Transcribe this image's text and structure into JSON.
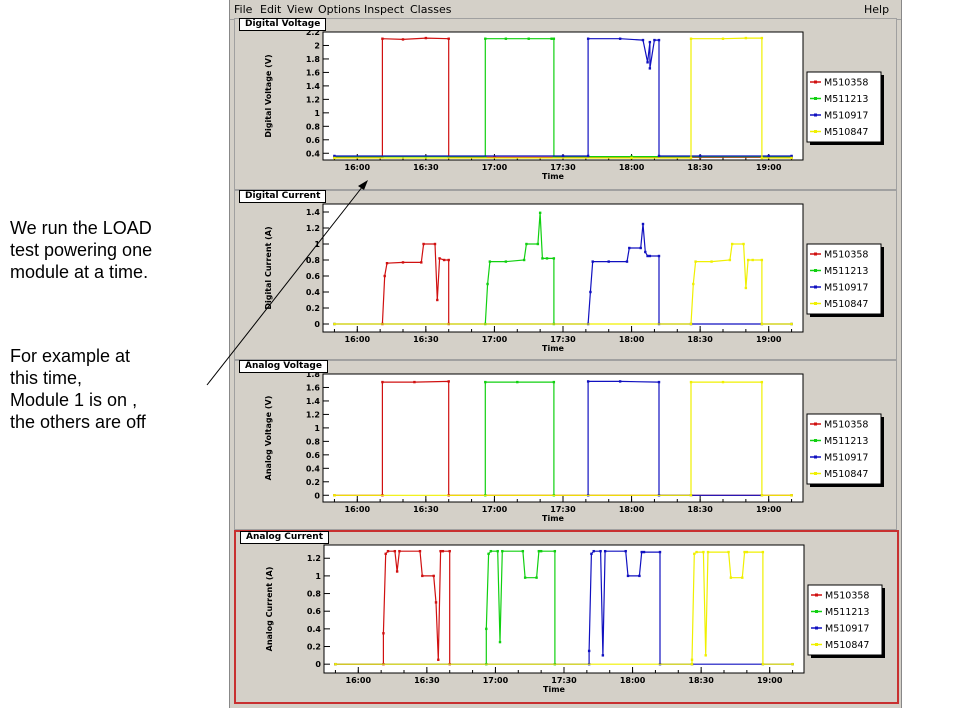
{
  "annotation": {
    "para1": "We run the LOAD\ntest powering one\nmodule at a time.",
    "para2": "For example at\nthis time,\nModule 1 is on ,\nthe others are off"
  },
  "menu": {
    "items": [
      "File",
      "Edit",
      "View",
      "Options",
      "Inspect",
      "Classes"
    ],
    "help": "Help"
  },
  "colors": {
    "M510358": "#d01010",
    "M511213": "#10d010",
    "M510917": "#1010c0",
    "M510847": "#f0f000",
    "window": "#d4d0c8",
    "selection": "#c83030"
  },
  "legend": [
    "M510358",
    "M511213",
    "M510917",
    "M510847"
  ],
  "chart_data": [
    {
      "type": "line",
      "title": "Digital Voltage",
      "xlabel": "Time",
      "ylabel": "Digital Voltage (V)",
      "xticks": [
        "16:00",
        "16:30",
        "17:00",
        "17:30",
        "18:00",
        "18:30",
        "19:00"
      ],
      "xlim": [
        "15:45",
        "19:15"
      ],
      "ylim": [
        0.3,
        2.2
      ],
      "yticks": [
        0.4,
        0.6,
        0.8,
        1,
        1.2,
        1.4,
        1.6,
        1.8,
        2,
        2.2
      ],
      "grid": false,
      "legend_position": "right",
      "series": [
        {
          "name": "M510358",
          "x": [
            "15:50",
            "16:11",
            "16:11",
            "16:20",
            "16:30",
            "16:40",
            "16:40",
            "17:00",
            "17:30",
            "18:00",
            "18:30",
            "19:00",
            "19:10"
          ],
          "y": [
            0.34,
            0.34,
            2.1,
            2.09,
            2.11,
            2.1,
            0.34,
            0.34,
            0.34,
            0.34,
            0.34,
            0.34,
            0.34
          ]
        },
        {
          "name": "M511213",
          "x": [
            "15:50",
            "16:30",
            "16:56",
            "16:56",
            "17:05",
            "17:15",
            "17:25",
            "17:26",
            "17:26",
            "18:00",
            "18:30",
            "19:10"
          ],
          "y": [
            0.35,
            0.35,
            0.35,
            2.1,
            2.1,
            2.1,
            2.1,
            2.1,
            0.35,
            0.35,
            0.35,
            0.35
          ]
        },
        {
          "name": "M510917",
          "x": [
            "15:50",
            "17:30",
            "17:41",
            "17:41",
            "17:55",
            "18:05",
            "18:07",
            "18:08",
            "18:08",
            "18:10",
            "18:12",
            "18:12",
            "18:30",
            "19:00",
            "19:10"
          ],
          "y": [
            0.36,
            0.36,
            0.36,
            2.1,
            2.1,
            2.08,
            1.75,
            2.05,
            1.66,
            2.08,
            2.08,
            0.36,
            0.36,
            0.36,
            0.36
          ]
        },
        {
          "name": "M510847",
          "x": [
            "15:50",
            "18:00",
            "18:26",
            "18:26",
            "18:40",
            "18:50",
            "18:57",
            "18:57",
            "19:10"
          ],
          "y": [
            0.33,
            0.33,
            0.33,
            2.1,
            2.1,
            2.11,
            2.11,
            0.33,
            0.33
          ]
        }
      ]
    },
    {
      "type": "line",
      "title": "Digital Current",
      "xlabel": "Time",
      "ylabel": "Digital Current (A)",
      "xticks": [
        "16:00",
        "16:30",
        "17:00",
        "17:30",
        "18:00",
        "18:30",
        "19:00"
      ],
      "xlim": [
        "15:45",
        "19:15"
      ],
      "ylim": [
        -0.1,
        1.5
      ],
      "yticks": [
        0,
        0.2,
        0.4,
        0.6,
        0.8,
        1,
        1.2,
        1.4
      ],
      "grid": false,
      "legend_position": "right",
      "series": [
        {
          "name": "M510358",
          "x": [
            "16:11",
            "16:12",
            "16:13",
            "16:20",
            "16:28",
            "16:29",
            "16:34",
            "16:35",
            "16:36",
            "16:38",
            "16:40",
            "16:40"
          ],
          "y": [
            0,
            0.6,
            0.76,
            0.77,
            0.77,
            1.0,
            1.0,
            0.3,
            0.82,
            0.8,
            0.8,
            0
          ]
        },
        {
          "name": "M511213",
          "x": [
            "16:56",
            "16:57",
            "16:58",
            "17:05",
            "17:13",
            "17:14",
            "17:19",
            "17:20",
            "17:21",
            "17:23",
            "17:26",
            "17:26"
          ],
          "y": [
            0,
            0.5,
            0.78,
            0.78,
            0.8,
            1.0,
            1.0,
            1.39,
            0.82,
            0.82,
            0.82,
            0
          ]
        },
        {
          "name": "M510917",
          "x": [
            "15:50",
            "17:41",
            "17:42",
            "17:43",
            "17:50",
            "17:58",
            "17:59",
            "18:04",
            "18:05",
            "18:06",
            "18:07",
            "18:08",
            "18:12",
            "18:12",
            "18:26",
            "18:57",
            "19:10"
          ],
          "y": [
            0,
            0,
            0.4,
            0.78,
            0.78,
            0.78,
            0.95,
            0.95,
            1.25,
            0.9,
            0.85,
            0.85,
            0.85,
            0,
            0,
            0,
            0
          ]
        },
        {
          "name": "M510847",
          "x": [
            "15:50",
            "18:26",
            "18:27",
            "18:28",
            "18:35",
            "18:43",
            "18:44",
            "18:49",
            "18:50",
            "18:51",
            "18:53",
            "18:57",
            "18:57",
            "19:10"
          ],
          "y": [
            0,
            0,
            0.5,
            0.78,
            0.78,
            0.8,
            1.0,
            1.0,
            0.45,
            0.8,
            0.8,
            0.8,
            0,
            0
          ]
        }
      ]
    },
    {
      "type": "line",
      "title": "Analog Voltage",
      "xlabel": "Time",
      "ylabel": "Analog Voltage (V)",
      "xticks": [
        "16:00",
        "16:30",
        "17:00",
        "17:30",
        "18:00",
        "18:30",
        "19:00"
      ],
      "xlim": [
        "15:45",
        "19:15"
      ],
      "ylim": [
        -0.1,
        1.8
      ],
      "yticks": [
        0,
        0.2,
        0.4,
        0.6,
        0.8,
        1,
        1.2,
        1.4,
        1.6,
        1.8
      ],
      "grid": false,
      "legend_position": "right",
      "series": [
        {
          "name": "M510358",
          "x": [
            "15:50",
            "16:11",
            "16:11",
            "16:25",
            "16:40",
            "16:40",
            "19:10"
          ],
          "y": [
            0,
            0,
            1.68,
            1.68,
            1.69,
            0,
            0
          ]
        },
        {
          "name": "M511213",
          "x": [
            "16:56",
            "16:56",
            "17:10",
            "17:26",
            "17:26"
          ],
          "y": [
            0,
            1.68,
            1.68,
            1.68,
            0
          ]
        },
        {
          "name": "M510917",
          "x": [
            "17:41",
            "17:41",
            "17:55",
            "18:12",
            "18:12",
            "18:26",
            "18:57"
          ],
          "y": [
            0,
            1.69,
            1.69,
            1.68,
            0,
            0,
            0
          ]
        },
        {
          "name": "M510847",
          "x": [
            "15:50",
            "18:26",
            "18:26",
            "18:40",
            "18:57",
            "18:57",
            "19:10"
          ],
          "y": [
            0,
            0,
            1.68,
            1.68,
            1.68,
            0,
            0
          ]
        }
      ]
    },
    {
      "type": "line",
      "title": "Analog Current",
      "xlabel": "Time",
      "ylabel": "Analog Current (A)",
      "xticks": [
        "16:00",
        "16:30",
        "17:00",
        "17:30",
        "18:00",
        "18:30",
        "19:00"
      ],
      "xlim": [
        "15:45",
        "19:15"
      ],
      "ylim": [
        -0.1,
        1.35
      ],
      "yticks": [
        0,
        0.2,
        0.4,
        0.6,
        0.8,
        1,
        1.2
      ],
      "grid": false,
      "legend_position": "right",
      "series": [
        {
          "name": "M510358",
          "x": [
            "15:50",
            "16:11",
            "16:11",
            "16:12",
            "16:13",
            "16:16",
            "16:17",
            "16:18",
            "16:27",
            "16:28",
            "16:33",
            "16:34",
            "16:35",
            "16:36",
            "16:37",
            "16:40",
            "16:40"
          ],
          "y": [
            0,
            0,
            0.35,
            1.25,
            1.28,
            1.28,
            1.05,
            1.28,
            1.28,
            1.0,
            1.0,
            0.7,
            0.05,
            1.28,
            1.28,
            1.28,
            0
          ]
        },
        {
          "name": "M511213",
          "x": [
            "16:56",
            "16:56",
            "16:57",
            "16:58",
            "17:01",
            "17:02",
            "17:03",
            "17:12",
            "17:13",
            "17:18",
            "17:19",
            "17:20",
            "17:26",
            "17:26"
          ],
          "y": [
            0,
            0.4,
            1.25,
            1.28,
            1.28,
            0.25,
            1.28,
            1.28,
            0.98,
            0.98,
            1.28,
            1.28,
            1.28,
            0
          ]
        },
        {
          "name": "M510917",
          "x": [
            "15:50",
            "17:41",
            "17:41",
            "17:42",
            "17:43",
            "17:46",
            "17:47",
            "17:48",
            "17:57",
            "17:58",
            "18:03",
            "18:04",
            "18:05",
            "18:12",
            "18:12",
            "18:26",
            "18:57",
            "19:10"
          ],
          "y": [
            0,
            0,
            0.15,
            1.25,
            1.28,
            1.28,
            0.1,
            1.28,
            1.28,
            1.0,
            1.0,
            1.27,
            1.27,
            1.27,
            0,
            0,
            0,
            0
          ]
        },
        {
          "name": "M510847",
          "x": [
            "15:50",
            "18:26",
            "18:26",
            "18:27",
            "18:28",
            "18:31",
            "18:32",
            "18:33",
            "18:42",
            "18:43",
            "18:48",
            "18:49",
            "18:50",
            "18:57",
            "18:57",
            "19:10"
          ],
          "y": [
            0,
            0,
            0.05,
            1.25,
            1.27,
            1.27,
            0.1,
            1.27,
            1.27,
            0.98,
            0.98,
            1.27,
            1.27,
            1.27,
            0,
            0
          ]
        }
      ]
    }
  ]
}
